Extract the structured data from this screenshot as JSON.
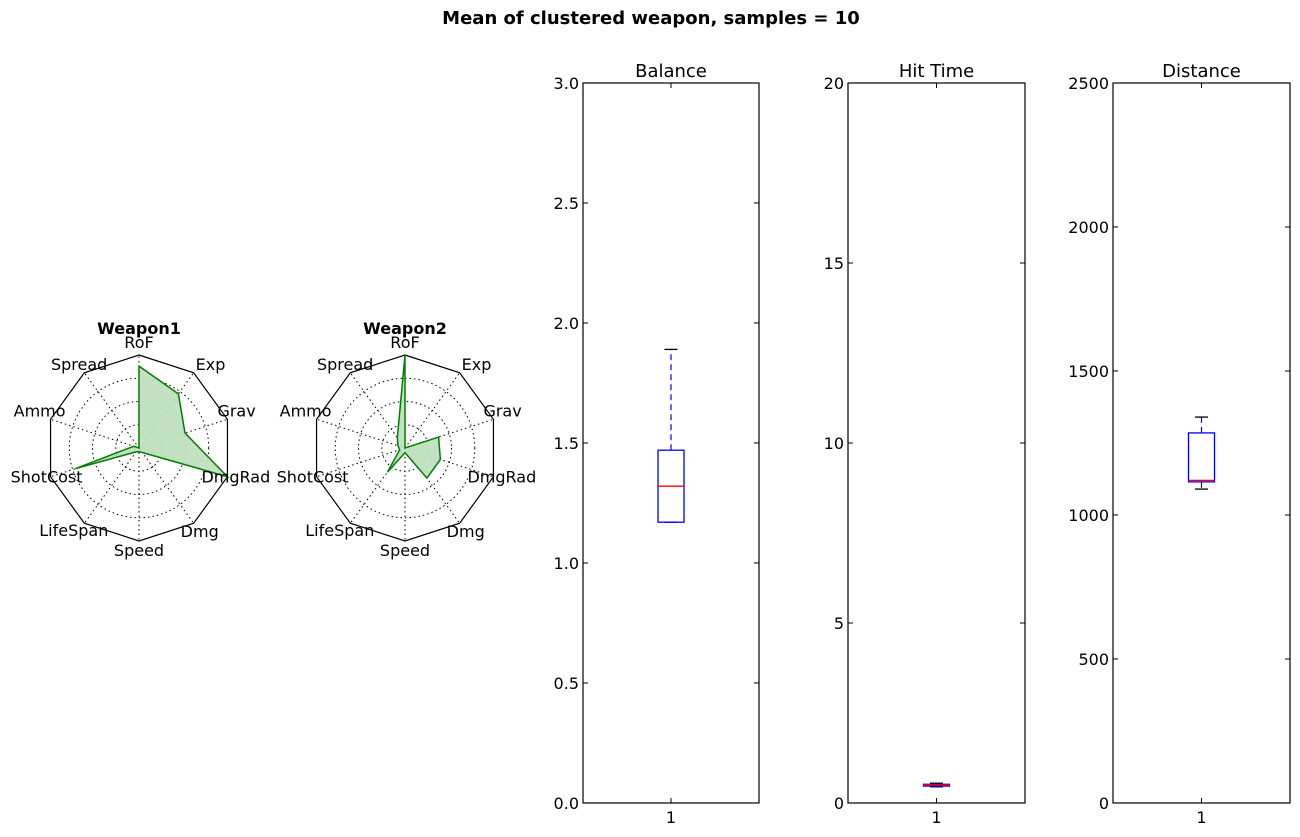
{
  "figure": {
    "title": "Mean of clustered weapon, samples = 10"
  },
  "chart_data": [
    {
      "type": "radar",
      "title": "Weapon1",
      "axes": [
        "RoF",
        "Exp",
        "Grav",
        "DmgRad",
        "Dmg",
        "Speed",
        "LifeSpan",
        "ShotCost",
        "Ammo",
        "Spread"
      ],
      "values": [
        0.88,
        0.72,
        0.52,
        1.0,
        0.06,
        0.04,
        0.05,
        0.72,
        0.06,
        0.0
      ],
      "colors": {
        "line": "#007f00",
        "fill": "#bfe0bf"
      }
    },
    {
      "type": "radar",
      "title": "Weapon2",
      "axes": [
        "RoF",
        "Exp",
        "Grav",
        "DmgRad",
        "Dmg",
        "Speed",
        "LifeSpan",
        "ShotCost",
        "Ammo",
        "Spread"
      ],
      "values": [
        1.0,
        0.0,
        0.38,
        0.4,
        0.4,
        0.05,
        0.32,
        0.06,
        0.08,
        0.14
      ],
      "colors": {
        "line": "#007f00",
        "fill": "#bfe0bf"
      }
    },
    {
      "type": "box",
      "title": "Balance",
      "ylim": [
        0,
        3.0
      ],
      "yticks": [
        "0.0",
        "0.5",
        "1.0",
        "1.5",
        "2.0",
        "2.5",
        "3.0"
      ],
      "xticks": [
        "1"
      ],
      "box": {
        "whisker_low": 1.17,
        "q1": 1.17,
        "median": 1.32,
        "q3": 1.47,
        "whisker_high": 1.89
      }
    },
    {
      "type": "box",
      "title": "Hit Time",
      "ylim": [
        0,
        20
      ],
      "yticks": [
        "0",
        "5",
        "10",
        "15",
        "20"
      ],
      "xticks": [
        "1"
      ],
      "box": {
        "whisker_low": 0.45,
        "q1": 0.47,
        "median": 0.5,
        "q3": 0.52,
        "whisker_high": 0.55
      }
    },
    {
      "type": "box",
      "title": "Distance",
      "ylim": [
        0,
        2500
      ],
      "yticks": [
        "0",
        "500",
        "1000",
        "1500",
        "2000",
        "2500"
      ],
      "xticks": [
        "1"
      ],
      "box": {
        "whisker_low": 1090,
        "q1": 1115,
        "median": 1120,
        "q3": 1285,
        "whisker_high": 1340
      }
    }
  ],
  "colors": {
    "box": "#0000ff",
    "median": "#ff0000",
    "whisker_cap": "#000000",
    "axis": "#000000",
    "grid": "#000000"
  }
}
